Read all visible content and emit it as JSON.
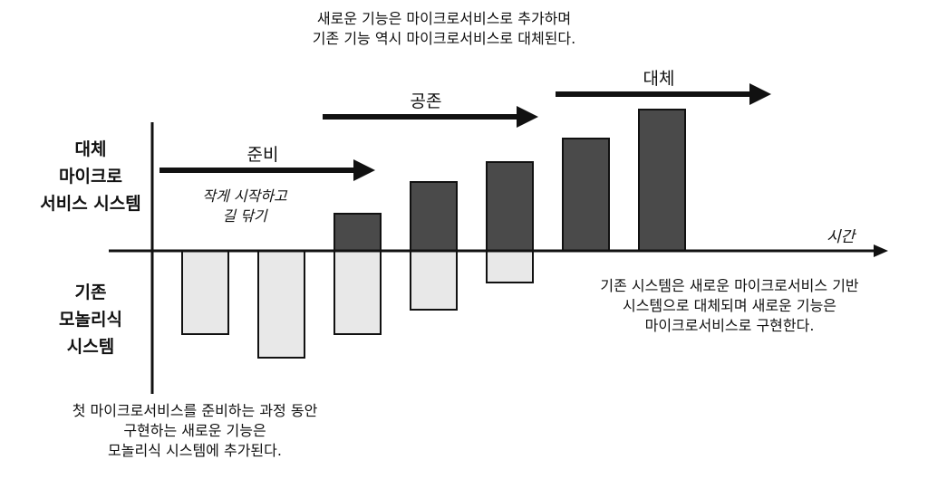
{
  "labels": {
    "new_system": [
      "대체",
      "마이크로",
      "서비스 시스템"
    ],
    "old_system": [
      "기존",
      "모놀리식",
      "시스템"
    ],
    "time_axis": "시간"
  },
  "phases": [
    {
      "name": "준비",
      "note": [
        "작게 시작하고",
        "길 닦기"
      ]
    },
    {
      "name": "공존",
      "note": [
        "새로운 기능은 마이크로서비스로 추가하며",
        "기존 기능 역시 마이크로서비스로 대체된다."
      ]
    },
    {
      "name": "대체",
      "note": [
        "기존 시스템은 새로운 마이크로서비스 기반",
        "시스템으로 대체되며 새로운 기능은",
        "마이크로서비스로 구현한다."
      ]
    }
  ],
  "bottom_note": [
    "첫 마이크로서비스를 준비하는 과정 동안",
    "구현하는 새로운 기능은",
    "모놀리식 시스템에 추가된다."
  ],
  "colors": {
    "new_bar": "#4a4a4a",
    "old_bar": "#e8e8e8",
    "outline": "#111111"
  },
  "bars": [
    {
      "micro": 0,
      "mono": 0.92
    },
    {
      "micro": 0,
      "mono": 1.18
    },
    {
      "micro": 0.41,
      "mono": 0.92
    },
    {
      "micro": 0.76,
      "mono": 0.65
    },
    {
      "micro": 0.98,
      "mono": 0.35
    },
    {
      "micro": 1.24,
      "mono": 0
    },
    {
      "micro": 1.56,
      "mono": 0
    }
  ]
}
